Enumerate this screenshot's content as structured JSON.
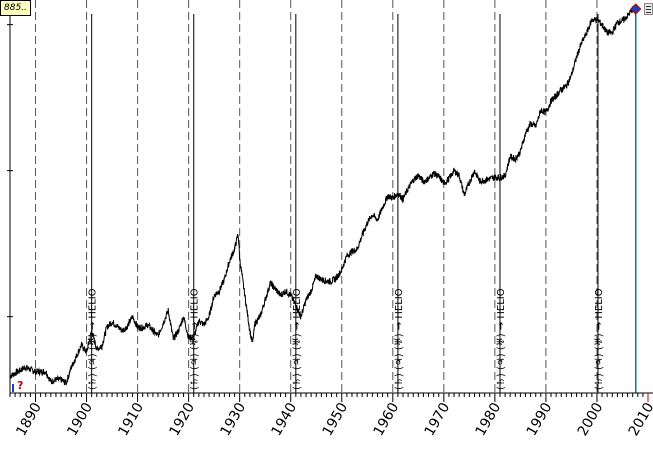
{
  "readout": {
    "value": "885.."
  },
  "chart_data": {
    "type": "line",
    "title": "",
    "xlabel": "",
    "ylabel": "",
    "yscale": "log",
    "xlim": [
      1885,
      2010
    ],
    "ylim": [
      30,
      13000
    ],
    "x_ticks": [
      1890,
      1900,
      1910,
      1920,
      1930,
      1940,
      1950,
      1960,
      1970,
      1980,
      1990,
      2000,
      2010
    ],
    "dashed_gridlines_years": [
      1890,
      1900,
      1910,
      1920,
      1930,
      1940,
      1950,
      1960,
      1970,
      1980,
      1990,
      2000
    ],
    "events": [
      {
        "year": 1901,
        "marker": "→",
        "text": "(♄) (♃) (♅) → HELIO"
      },
      {
        "year": 1921,
        "marker": "→",
        "text": "(♄) (♃) (♅) → HELIO"
      },
      {
        "year": 1941,
        "marker": "→",
        "text": "(♄) (♃) (♅) → HELIO"
      },
      {
        "year": 1961,
        "marker": "→",
        "text": "(♄) (♃) (♅) → HELIO"
      },
      {
        "year": 1981,
        "marker": "→",
        "text": "(♄) (♃) (♅) → HELIO"
      },
      {
        "year": 2000.2,
        "marker": "→",
        "text": "(♄) (♃) (♅) → HELIO"
      }
    ],
    "current_year_line": 2007.6,
    "corner_marker": {
      "x": 2007.6,
      "y": 12800
    },
    "start_marker": "?",
    "series": [
      {
        "x": [
          1885,
          1887,
          1888,
          1890,
          1892,
          1893,
          1894,
          1895,
          1896,
          1897,
          1899,
          1900,
          1901,
          1902,
          1903,
          1904,
          1905,
          1906,
          1907,
          1908,
          1909,
          1910,
          1911,
          1912,
          1913,
          1914,
          1915,
          1916,
          1917,
          1918,
          1919,
          1920,
          1921,
          1922,
          1923,
          1924,
          1925,
          1926,
          1927,
          1928,
          1929,
          1929.7,
          1930,
          1931,
          1932,
          1932.5,
          1933,
          1934,
          1935,
          1936,
          1937,
          1938,
          1939,
          1940,
          1941,
          1942,
          1943,
          1944,
          1945,
          1946,
          1947,
          1948,
          1949,
          1950,
          1951,
          1952,
          1953,
          1954,
          1955,
          1956,
          1957,
          1958,
          1959,
          1960,
          1961,
          1962,
          1963,
          1964,
          1965,
          1966,
          1967,
          1968,
          1969,
          1970,
          1971,
          1972,
          1973,
          1974,
          1975,
          1976,
          1977,
          1978,
          1979,
          1980,
          1981,
          1982,
          1983,
          1984,
          1985,
          1986,
          1987,
          1988,
          1989,
          1990,
          1991,
          1992,
          1993,
          1994,
          1995,
          1996,
          1997,
          1998,
          1999,
          2000,
          2001,
          2002,
          2003,
          2004,
          2005,
          2006,
          2007,
          2007.6
        ],
        "y": [
          39,
          43,
          45,
          42,
          42,
          36,
          37,
          37,
          35,
          45,
          64,
          57,
          80,
          60,
          63,
          85,
          92,
          86,
          80,
          86,
          100,
          85,
          84,
          88,
          80,
          74,
          90,
          110,
          70,
          80,
          100,
          72,
          72,
          94,
          88,
          100,
          140,
          150,
          180,
          240,
          290,
          370,
          250,
          140,
          80,
          65,
          90,
          100,
          130,
          170,
          155,
          140,
          150,
          140,
          120,
          100,
          130,
          150,
          190,
          180,
          175,
          175,
          185,
          210,
          260,
          280,
          290,
          360,
          440,
          500,
          460,
          560,
          670,
          650,
          700,
          640,
          750,
          860,
          930,
          840,
          880,
          960,
          910,
          820,
          880,
          1000,
          930,
          680,
          830,
          1000,
          850,
          860,
          880,
          900,
          900,
          920,
          1250,
          1200,
          1350,
          1800,
          2100,
          2000,
          2600,
          2500,
          3000,
          3250,
          3600,
          3800,
          4500,
          6000,
          7500,
          8800,
          10800,
          10800,
          10000,
          8800,
          8800,
          10400,
          10600,
          11500,
          12800,
          13000
        ]
      }
    ]
  }
}
